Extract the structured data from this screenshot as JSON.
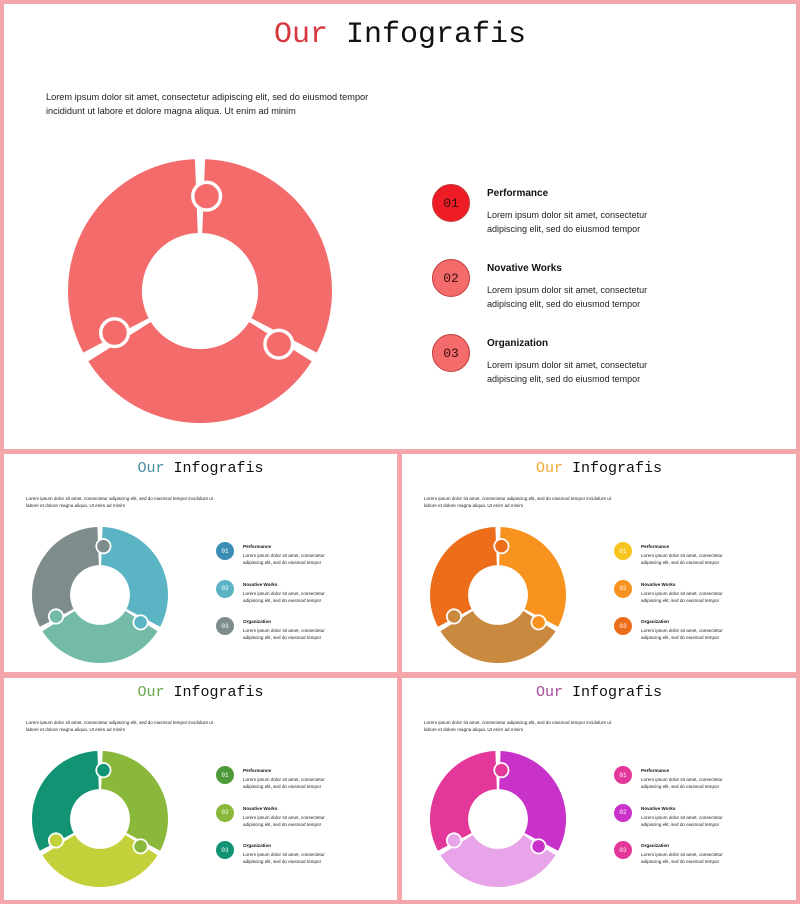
{
  "slides": [
    {
      "title_accent": "Our",
      "title_rest": " Infografis",
      "accent_color": "#d9373f",
      "description": "Lorem ipsum dolor sit amet, consectetur adipiscing elit, sed do eiusmod tempor incididunt ut labore et dolore magna aliqua. Ut enim ad minim",
      "segment_colors": [
        "#f46b6b",
        "#f46b6b",
        "#f46b6b"
      ],
      "items": [
        {
          "number": "01",
          "title": "Performance",
          "text": "Lorem ipsum dolor sit amet, consectetur adipiscing elit, sed do eiusmod tempor",
          "color": "#ee1c24"
        },
        {
          "number": "02",
          "title": "Novative Works",
          "text": "Lorem ipsum dolor sit amet, consectetur adipiscing elit, sed do eiusmod tempor",
          "color": "#f46b6b"
        },
        {
          "number": "03",
          "title": "Organization",
          "text": "Lorem ipsum dolor sit amet, consectetur adipiscing elit, sed do eiusmod tempor",
          "color": "#f46b6b"
        }
      ]
    },
    {
      "title_accent": "Our",
      "title_rest": " Infografis",
      "accent_color": "#4a90a4",
      "description": "Lorem ipsum dolor sit amet, consectetur adipiscing elit, sed do eiusmod tempor incididunt ut labore et dolore magna aliqua. Ut enim ad minim",
      "segment_colors": [
        "#5ab4c4",
        "#73bba8",
        "#7f8c8c"
      ],
      "items": [
        {
          "number": "01",
          "title": "Performance",
          "text": "Lorem ipsum dolor sit amet, consectetur adipiscing elit, sed do eiusmod tempor",
          "color": "#3b8db5"
        },
        {
          "number": "02",
          "title": "Novative Works",
          "text": "Lorem ipsum dolor sit amet, consectetur adipiscing elit, sed do eiusmod tempor",
          "color": "#5ab4c4"
        },
        {
          "number": "03",
          "title": "Organization",
          "text": "Lorem ipsum dolor sit amet, consectetur adipiscing elit, sed do eiusmod tempor",
          "color": "#7f8c8c"
        }
      ]
    },
    {
      "title_accent": "Our",
      "title_rest": " Infografis",
      "accent_color": "#f0a830",
      "description": "Lorem ipsum dolor sit amet, consectetur adipiscing elit, sed do eiusmod tempor incididunt ut labore et dolore magna aliqua. Ut enim ad minim",
      "segment_colors": [
        "#f7931e",
        "#c98a3f",
        "#ec6d1a"
      ],
      "items": [
        {
          "number": "01",
          "title": "Performance",
          "text": "Lorem ipsum dolor sit amet, consectetur adipiscing elit, sed do eiusmod tempor",
          "color": "#f7c51e"
        },
        {
          "number": "02",
          "title": "Novative Works",
          "text": "Lorem ipsum dolor sit amet, consectetur adipiscing elit, sed do eiusmod tempor",
          "color": "#f7931e"
        },
        {
          "number": "03",
          "title": "Organization",
          "text": "Lorem ipsum dolor sit amet, consectetur adipiscing elit, sed do eiusmod tempor",
          "color": "#ec6d1a"
        }
      ]
    },
    {
      "title_accent": "Our",
      "title_rest": " Infografis",
      "accent_color": "#6aa84f",
      "description": "Lorem ipsum dolor sit amet, consectetur adipiscing elit, sed do eiusmod tempor incididunt ut labore et dolore magna aliqua. Ut enim ad minim",
      "segment_colors": [
        "#8ab83a",
        "#c2d03a",
        "#129474"
      ],
      "items": [
        {
          "number": "01",
          "title": "Performance",
          "text": "Lorem ipsum dolor sit amet, consectetur adipiscing elit, sed do eiusmod tempor",
          "color": "#4e9a3a"
        },
        {
          "number": "02",
          "title": "Novative Works",
          "text": "Lorem ipsum dolor sit amet, consectetur adipiscing elit, sed do eiusmod tempor",
          "color": "#8ab83a"
        },
        {
          "number": "03",
          "title": "Organization",
          "text": "Lorem ipsum dolor sit amet, consectetur adipiscing elit, sed do eiusmod tempor",
          "color": "#129474"
        }
      ]
    },
    {
      "title_accent": "Our",
      "title_rest": " Infografis",
      "accent_color": "#a64d9a",
      "description": "Lorem ipsum dolor sit amet, consectetur adipiscing elit, sed do eiusmod tempor incididunt ut labore et dolore magna aliqua. Ut enim ad minim",
      "segment_colors": [
        "#c832c8",
        "#e8a4e8",
        "#e3379a"
      ],
      "items": [
        {
          "number": "01",
          "title": "Performance",
          "text": "Lorem ipsum dolor sit amet, consectetur adipiscing elit, sed do eiusmod tempor",
          "color": "#e3379a"
        },
        {
          "number": "02",
          "title": "Novative Works",
          "text": "Lorem ipsum dolor sit amet, consectetur adipiscing elit, sed do eiusmod tempor",
          "color": "#c832c8"
        },
        {
          "number": "03",
          "title": "Organization",
          "text": "Lorem ipsum dolor sit amet, consectetur adipiscing elit, sed do eiusmod tempor",
          "color": "#e3379a"
        }
      ]
    }
  ]
}
